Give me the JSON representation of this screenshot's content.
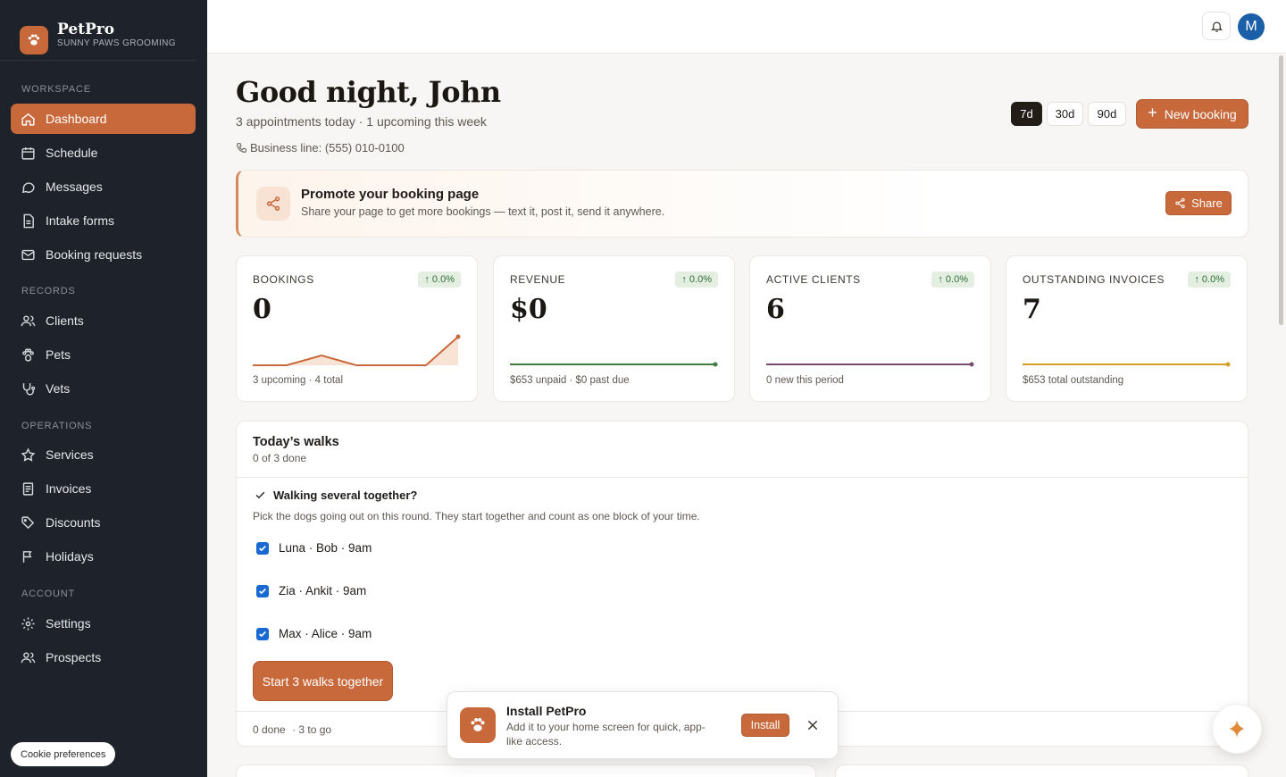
{
  "brand": {
    "name": "PetPro",
    "sub": "SUNNY PAWS GROOMING"
  },
  "sidebar": {
    "sections": [
      "WORKSPACE",
      "RECORDS",
      "OPERATIONS",
      "ACCOUNT"
    ],
    "items": [
      {
        "label": "Dashboard",
        "icon": "home-icon",
        "active": true
      },
      {
        "label": "Schedule",
        "icon": "calendar-icon"
      },
      {
        "label": "Messages",
        "icon": "message-icon"
      },
      {
        "label": "Intake forms",
        "icon": "file-icon"
      },
      {
        "label": "Booking requests",
        "icon": "mail-icon"
      },
      {
        "label": "Clients",
        "icon": "users-icon"
      },
      {
        "label": "Pets",
        "icon": "paw-icon"
      },
      {
        "label": "Vets",
        "icon": "stethoscope-icon"
      },
      {
        "label": "Services",
        "icon": "star-icon"
      },
      {
        "label": "Invoices",
        "icon": "receipt-icon"
      },
      {
        "label": "Discounts",
        "icon": "tag-icon"
      },
      {
        "label": "Holidays",
        "icon": "flag-icon"
      },
      {
        "label": "Settings",
        "icon": "gear-icon"
      },
      {
        "label": "Prospects",
        "icon": "users-icon"
      }
    ],
    "cookie_label": "Cookie preferences"
  },
  "topbar": {
    "avatar_initial": "M"
  },
  "header": {
    "greeting": "Good night, John",
    "subline": "3 appointments today · 1 upcoming this week",
    "phone": "Business line: (555) 010-0100",
    "ranges": [
      "7d",
      "30d",
      "90d"
    ],
    "active_range": "7d",
    "new_booking": "New booking"
  },
  "promo": {
    "title": "Promote your booking page",
    "desc": "Share your page to get more bookings — text it, post it, send it anywhere.",
    "share_label": "Share"
  },
  "stats": [
    {
      "label": "BOOKINGS",
      "badge": "↑ 0.0%",
      "value": "0",
      "foot": "3 upcoming · 4 total",
      "color": "#c8693c"
    },
    {
      "label": "REVENUE",
      "badge": "↑ 0.0%",
      "value": "$0",
      "foot": "$653 unpaid · $0 past due",
      "color": "#3f7d3f"
    },
    {
      "label": "ACTIVE CLIENTS",
      "badge": "↑ 0.0%",
      "value": "6",
      "foot": "0 new this period",
      "color": "#7a4a6e"
    },
    {
      "label": "OUTSTANDING INVOICES",
      "badge": "↑ 0.0%",
      "value": "7",
      "foot": "$653 total outstanding",
      "color": "#d6a024"
    }
  ],
  "walks": {
    "title": "Today’s walks",
    "sub": "0 of 3 done",
    "multi_title": "Walking several together?",
    "multi_desc": "Pick the dogs going out on this round. They start together and count as one block of your time.",
    "dogs": [
      "Luna · Bob · 9am",
      "Zia · Ankit · 9am",
      "Max · Alice · 9am"
    ],
    "start_label": "Start 3 walks together",
    "foot_done": "0 done",
    "foot_togo": "· 3 to go"
  },
  "toast": {
    "title": "Install PetPro",
    "desc": "Add it to your home screen for quick, app-like access.",
    "install_label": "Install"
  }
}
